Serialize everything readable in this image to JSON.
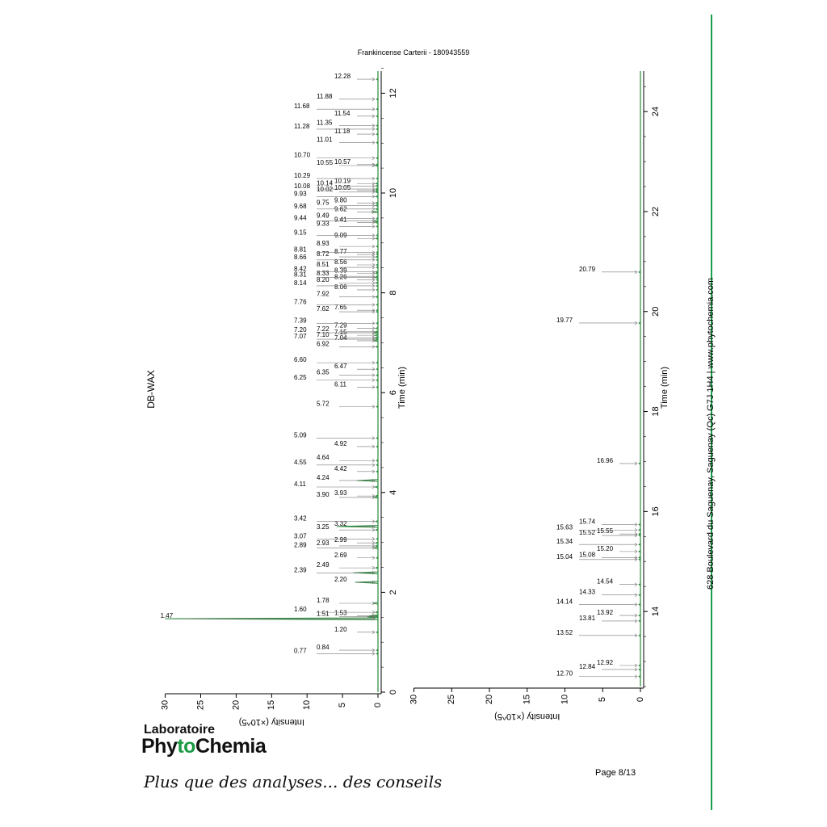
{
  "header": {
    "title": "Frankincense Carterii - 180943559",
    "method": "DB-WAX"
  },
  "chart_data": [
    {
      "type": "line",
      "orientation": "rotated-90",
      "xlabel": "Time (min)",
      "ylabel": "Intensity (×10^5)",
      "xlim": [
        0,
        12.5
      ],
      "ylim": [
        0,
        30
      ],
      "xticks": [
        "0",
        "2",
        "4",
        "6",
        "8",
        "10",
        "12"
      ],
      "yticks": [
        "30",
        "25",
        "20",
        "15",
        "10",
        "5",
        "0"
      ],
      "peaks": [
        {
          "rt": 0.77,
          "label": "0.77",
          "h": 0.2
        },
        {
          "rt": 0.84,
          "label": "0.84",
          "h": 0.2
        },
        {
          "rt": 1.2,
          "label": "1.20",
          "h": 0.2
        },
        {
          "rt": 1.47,
          "label": "1.47",
          "h": 30
        },
        {
          "rt": 1.51,
          "label": "1.51",
          "h": 1.5
        },
        {
          "rt": 1.53,
          "label": "1.53",
          "h": 1.2
        },
        {
          "rt": 1.6,
          "label": "1.60",
          "h": 0.3
        },
        {
          "rt": 1.78,
          "label": "1.78",
          "h": 0.7
        },
        {
          "rt": 2.2,
          "label": "2.20",
          "h": 3.2
        },
        {
          "rt": 2.39,
          "label": "2.39",
          "h": 3.5
        },
        {
          "rt": 2.49,
          "label": "2.49",
          "h": 0.3
        },
        {
          "rt": 2.69,
          "label": "2.69",
          "h": 0.2
        },
        {
          "rt": 2.89,
          "label": "2.89",
          "h": 0.6
        },
        {
          "rt": 2.93,
          "label": "2.93",
          "h": 0.3
        },
        {
          "rt": 2.99,
          "label": "2.99",
          "h": 0.3
        },
        {
          "rt": 3.07,
          "label": "3.07",
          "h": 0.2
        },
        {
          "rt": 3.25,
          "label": "3.25",
          "h": 0.3
        },
        {
          "rt": 3.32,
          "label": "3.32",
          "h": 5.8
        },
        {
          "rt": 3.42,
          "label": "3.42",
          "h": 0.3
        },
        {
          "rt": 3.9,
          "label": "3.90",
          "h": 0.5
        },
        {
          "rt": 3.93,
          "label": "3.93",
          "h": 0.3
        },
        {
          "rt": 4.11,
          "label": "4.11",
          "h": 0.4
        },
        {
          "rt": 4.24,
          "label": "4.24",
          "h": 3.0
        },
        {
          "rt": 4.42,
          "label": "4.42",
          "h": 0.2
        },
        {
          "rt": 4.55,
          "label": "4.55",
          "h": 0.2
        },
        {
          "rt": 4.64,
          "label": "4.64",
          "h": 0.2
        },
        {
          "rt": 4.92,
          "label": "4.92",
          "h": 0.2
        },
        {
          "rt": 5.09,
          "label": "5.09",
          "h": 0.2
        },
        {
          "rt": 5.72,
          "label": "5.72",
          "h": 0.2
        },
        {
          "rt": 6.11,
          "label": "6.11",
          "h": 0.2
        },
        {
          "rt": 6.25,
          "label": "6.25",
          "h": 0.2
        },
        {
          "rt": 6.35,
          "label": "6.35",
          "h": 0.2
        },
        {
          "rt": 6.47,
          "label": "6.47",
          "h": 0.2
        },
        {
          "rt": 6.6,
          "label": "6.60",
          "h": 0.2
        },
        {
          "rt": 6.92,
          "label": "6.92",
          "h": 0.3
        },
        {
          "rt": 7.04,
          "label": "7.04",
          "h": 0.5
        },
        {
          "rt": 7.07,
          "label": "7.07",
          "h": 0.3
        },
        {
          "rt": 7.1,
          "label": "7.10",
          "h": 0.4
        },
        {
          "rt": 7.15,
          "label": "7.15",
          "h": 0.4
        },
        {
          "rt": 7.2,
          "label": "7.20",
          "h": 0.6
        },
        {
          "rt": 7.22,
          "label": "7.22",
          "h": 0.3
        },
        {
          "rt": 7.29,
          "label": "7.29",
          "h": 0.3
        },
        {
          "rt": 7.39,
          "label": "7.39",
          "h": 0.2
        },
        {
          "rt": 7.62,
          "label": "7.62",
          "h": 0.2
        },
        {
          "rt": 7.65,
          "label": "7.65",
          "h": 0.2
        },
        {
          "rt": 7.76,
          "label": "7.76",
          "h": 0.2
        },
        {
          "rt": 7.92,
          "label": "7.92",
          "h": 0.3
        },
        {
          "rt": 8.06,
          "label": "8.06",
          "h": 0.2
        },
        {
          "rt": 8.14,
          "label": "8.14",
          "h": 0.2
        },
        {
          "rt": 8.2,
          "label": "8.20",
          "h": 0.3
        },
        {
          "rt": 8.26,
          "label": "8.26",
          "h": 0.2
        },
        {
          "rt": 8.31,
          "label": "8.31",
          "h": 0.4
        },
        {
          "rt": 8.33,
          "label": "8.33",
          "h": 0.2
        },
        {
          "rt": 8.39,
          "label": "8.39",
          "h": 0.3
        },
        {
          "rt": 8.42,
          "label": "8.42",
          "h": 0.3
        },
        {
          "rt": 8.51,
          "label": "8.51",
          "h": 0.2
        },
        {
          "rt": 8.56,
          "label": "8.56",
          "h": 0.2
        },
        {
          "rt": 8.66,
          "label": "8.66",
          "h": 0.2
        },
        {
          "rt": 8.72,
          "label": "8.72",
          "h": 0.3
        },
        {
          "rt": 8.77,
          "label": "8.77",
          "h": 0.2
        },
        {
          "rt": 8.81,
          "label": "8.81",
          "h": 0.2
        },
        {
          "rt": 8.93,
          "label": "8.93",
          "h": 0.2
        },
        {
          "rt": 9.09,
          "label": "9.09",
          "h": 0.3
        },
        {
          "rt": 9.15,
          "label": "9.15",
          "h": 0.2
        },
        {
          "rt": 9.33,
          "label": "9.33",
          "h": 0.2
        },
        {
          "rt": 9.41,
          "label": "9.41",
          "h": 0.3
        },
        {
          "rt": 9.44,
          "label": "9.44",
          "h": 0.6
        },
        {
          "rt": 9.49,
          "label": "9.49",
          "h": 0.2
        },
        {
          "rt": 9.62,
          "label": "9.62",
          "h": 1.0
        },
        {
          "rt": 9.68,
          "label": "9.68",
          "h": 0.3
        },
        {
          "rt": 9.75,
          "label": "9.75",
          "h": 0.3
        },
        {
          "rt": 9.8,
          "label": "9.80",
          "h": 0.3
        },
        {
          "rt": 9.93,
          "label": "9.93",
          "h": 0.3
        },
        {
          "rt": 10.02,
          "label": "10.02",
          "h": 0.3
        },
        {
          "rt": 10.05,
          "label": "10.05",
          "h": 0.3
        },
        {
          "rt": 10.08,
          "label": "10.08",
          "h": 0.3
        },
        {
          "rt": 10.14,
          "label": "10.14",
          "h": 0.3
        },
        {
          "rt": 10.19,
          "label": "10.19",
          "h": 0.3
        },
        {
          "rt": 10.29,
          "label": "10.29",
          "h": 0.2
        },
        {
          "rt": 10.55,
          "label": "10.55",
          "h": 0.4
        },
        {
          "rt": 10.57,
          "label": "10.57",
          "h": 0.2
        },
        {
          "rt": 10.7,
          "label": "10.70",
          "h": 0.2
        },
        {
          "rt": 11.01,
          "label": "11.01",
          "h": 0.2
        },
        {
          "rt": 11.18,
          "label": "11.18",
          "h": 0.2
        },
        {
          "rt": 11.28,
          "label": "11.28",
          "h": 0.2
        },
        {
          "rt": 11.35,
          "label": "11.35",
          "h": 0.2
        },
        {
          "rt": 11.54,
          "label": "11.54",
          "h": 0.2
        },
        {
          "rt": 11.68,
          "label": "11.68",
          "h": 0.2
        },
        {
          "rt": 11.88,
          "label": "11.88",
          "h": 0.2
        },
        {
          "rt": 12.28,
          "label": "12.28",
          "h": 0.2
        }
      ]
    },
    {
      "type": "line",
      "orientation": "rotated-90",
      "xlabel": "Time (min)",
      "ylabel": "Intensity (×10^5)",
      "xlim": [
        12.5,
        24.8
      ],
      "ylim": [
        0,
        30
      ],
      "xticks": [
        "14",
        "16",
        "18",
        "20",
        "22",
        "24"
      ],
      "yticks": [
        "30",
        "25",
        "20",
        "15",
        "10",
        "5",
        "0"
      ],
      "peaks": [
        {
          "rt": 12.7,
          "label": "12.70",
          "h": 0.2
        },
        {
          "rt": 12.84,
          "label": "12.84",
          "h": 0.2
        },
        {
          "rt": 12.92,
          "label": "12.92",
          "h": 0.2
        },
        {
          "rt": 13.52,
          "label": "13.52",
          "h": 0.2
        },
        {
          "rt": 13.81,
          "label": "13.81",
          "h": 0.2
        },
        {
          "rt": 13.92,
          "label": "13.92",
          "h": 0.2
        },
        {
          "rt": 14.14,
          "label": "14.14",
          "h": 0.2
        },
        {
          "rt": 14.33,
          "label": "14.33",
          "h": 0.2
        },
        {
          "rt": 14.54,
          "label": "14.54",
          "h": 0.2
        },
        {
          "rt": 15.04,
          "label": "15.04",
          "h": 0.2
        },
        {
          "rt": 15.08,
          "label": "15.08",
          "h": 0.2
        },
        {
          "rt": 15.2,
          "label": "15.20",
          "h": 0.2
        },
        {
          "rt": 15.34,
          "label": "15.34",
          "h": 0.2
        },
        {
          "rt": 15.52,
          "label": "15.52",
          "h": 0.2
        },
        {
          "rt": 15.55,
          "label": "15.55",
          "h": 0.2
        },
        {
          "rt": 15.63,
          "label": "15.63",
          "h": 0.2
        },
        {
          "rt": 15.74,
          "label": "15.74",
          "h": 0.2
        },
        {
          "rt": 16.96,
          "label": "16.96",
          "h": 0.2
        },
        {
          "rt": 19.77,
          "label": "19.77",
          "h": 0.2
        },
        {
          "rt": 20.79,
          "label": "20.79",
          "h": 0.2
        }
      ]
    }
  ],
  "footer": {
    "lab_line1": "Laboratoire",
    "lab_line2a": "Phy",
    "lab_line2b": "to",
    "lab_line2c": "Chemia",
    "slogan": "Plus que des analyses... des conseils",
    "page": "Page 8/13",
    "address": "628 Boulevard du Saguenay, Saguenay (Qc) G7J 1H4  |  www.phytochemia.com"
  }
}
